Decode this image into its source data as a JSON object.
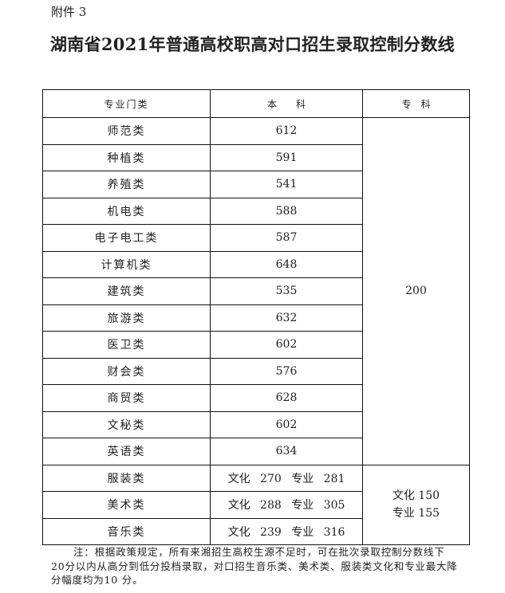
{
  "attachment": "附件 3",
  "title": "湖南省2021年普通高校职高对口招生录取控制分数线",
  "headers": [
    "专业门类",
    "本　　科",
    "专　科"
  ],
  "rows": [
    {
      "category": "师范类",
      "bachelor": "612"
    },
    {
      "category": "种植类",
      "bachelor": "591"
    },
    {
      "category": "养殖类",
      "bachelor": "541"
    },
    {
      "category": "机电类",
      "bachelor": "588"
    },
    {
      "category": "电子电工类",
      "bachelor": "587"
    },
    {
      "category": "计算机类",
      "bachelor": "648"
    },
    {
      "category": "建筑类",
      "bachelor": "535"
    },
    {
      "category": "旅游类",
      "bachelor": "632"
    },
    {
      "category": "医卫类",
      "bachelor": "602"
    },
    {
      "category": "财会类",
      "bachelor": "576"
    },
    {
      "category": "商贸类",
      "bachelor": "628"
    },
    {
      "category": "文秘类",
      "bachelor": "602"
    },
    {
      "category": "英语类",
      "bachelor": "634"
    }
  ],
  "junior_general": "200",
  "art_rows": [
    {
      "category": "服装类",
      "bachelor": "文化 270  专业 281"
    },
    {
      "category": "美术类",
      "bachelor": "文化 288  专业 305"
    },
    {
      "category": "音乐类",
      "bachelor": "文化 239  专业 316"
    }
  ],
  "junior_art_line1": "文化 150",
  "junior_art_line2": "专业 155",
  "note": "注：根据政策规定，所有来湘招生高校生源不足时，可在批次录取控制分数线下20分以内从高分到低分投档录取，对口招生音乐类、美术类、服装类文化和专业最大降分幅度均为10 分。"
}
